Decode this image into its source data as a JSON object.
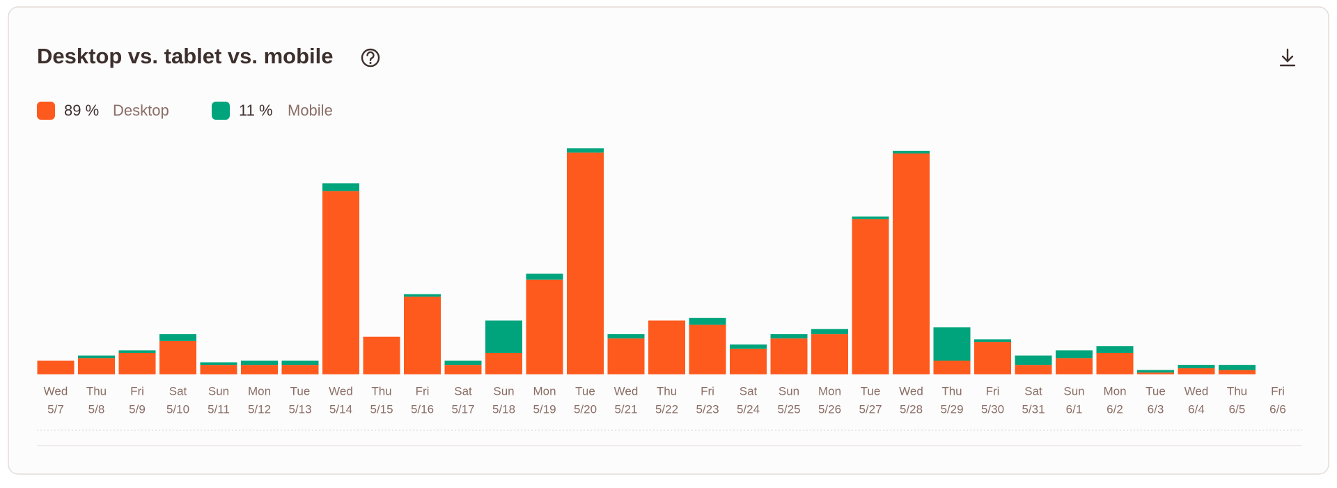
{
  "chart_data": {
    "type": "stacked_bar",
    "title": "Desktop vs. tablet vs. mobile",
    "weekdays": [
      "Wed",
      "Thu",
      "Fri",
      "Sat",
      "Sun",
      "Mon",
      "Tue",
      "Wed",
      "Thu",
      "Fri",
      "Sat",
      "Sun",
      "Mon",
      "Tue",
      "Wed",
      "Thu",
      "Fri",
      "Sat",
      "Sun",
      "Mon",
      "Tue",
      "Wed",
      "Thu",
      "Fri",
      "Sat",
      "Sun",
      "Mon",
      "Tue",
      "Wed",
      "Thu",
      "Fri"
    ],
    "categories": [
      "5/7",
      "5/8",
      "5/9",
      "5/10",
      "5/11",
      "5/12",
      "5/13",
      "5/14",
      "5/15",
      "5/16",
      "5/17",
      "5/18",
      "5/19",
      "5/20",
      "5/21",
      "5/22",
      "5/23",
      "5/24",
      "5/25",
      "5/26",
      "5/27",
      "5/28",
      "5/29",
      "5/30",
      "5/31",
      "6/1",
      "6/2",
      "6/3",
      "6/4",
      "6/5",
      "6/6"
    ],
    "series": [
      {
        "name": "Desktop",
        "share": "89 %",
        "color": "#fe5a1d",
        "values": [
          16,
          19,
          25,
          39,
          11,
          11,
          11,
          215,
          44,
          91,
          11,
          25,
          111,
          260,
          42,
          63,
          58,
          30,
          42,
          47,
          182,
          259,
          16,
          38,
          11,
          19,
          25,
          2,
          7,
          5,
          0
        ]
      },
      {
        "name": "Mobile",
        "share": "11 %",
        "color": "#00a47c",
        "values": [
          0,
          3,
          3,
          8,
          3,
          5,
          5,
          9,
          0,
          3,
          5,
          38,
          7,
          5,
          5,
          0,
          8,
          5,
          5,
          6,
          3,
          3,
          39,
          3,
          11,
          9,
          8,
          3,
          4,
          6,
          0
        ]
      }
    ],
    "ylim": [
      0,
      270
    ]
  }
}
